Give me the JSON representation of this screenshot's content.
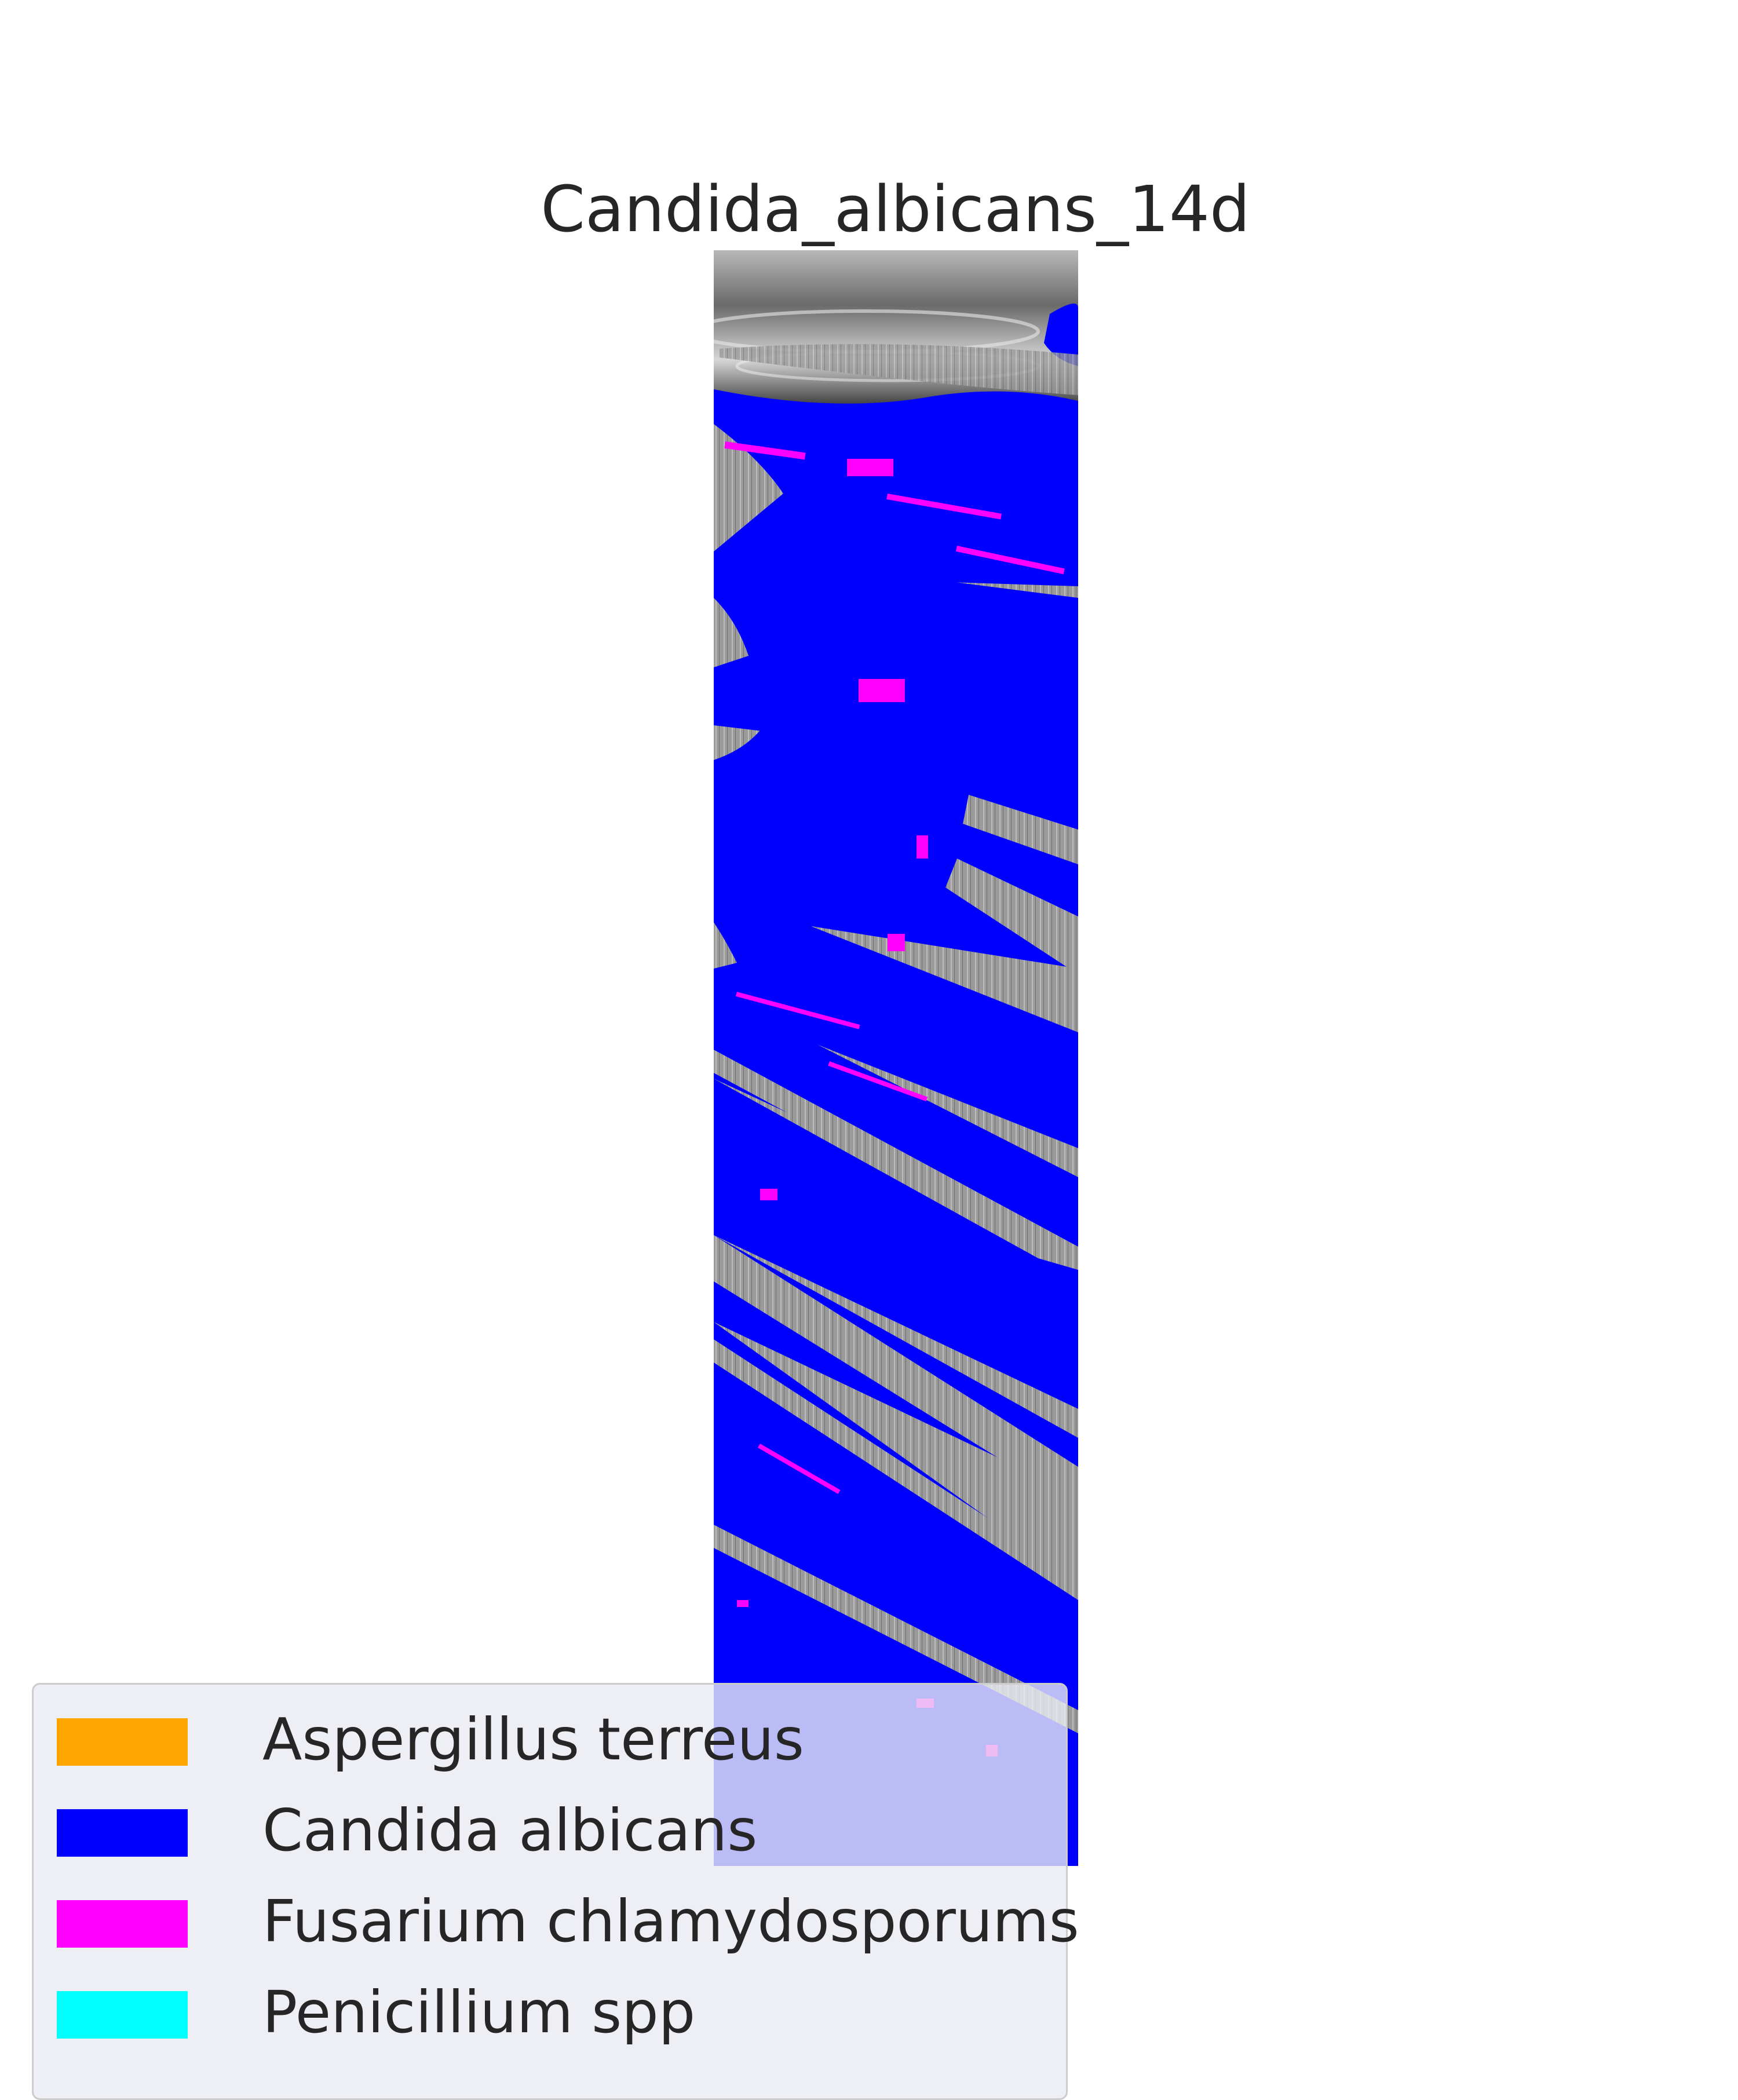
{
  "figure": {
    "title": "Candida_albicans_14d"
  },
  "image": {
    "kind": "grayscale strip scan with fungal species segmentation overlay",
    "dominant_overlay": "Candida albicans"
  },
  "legend": {
    "items": [
      {
        "label": "Aspergillus terreus",
        "color": "#FFA500"
      },
      {
        "label": "Candida albicans",
        "color": "#0000FF"
      },
      {
        "label": "Fusarium chlamydosporums",
        "color": "#FF00FF"
      },
      {
        "label": "Penicillium spp",
        "color": "#00FFFF"
      }
    ]
  }
}
